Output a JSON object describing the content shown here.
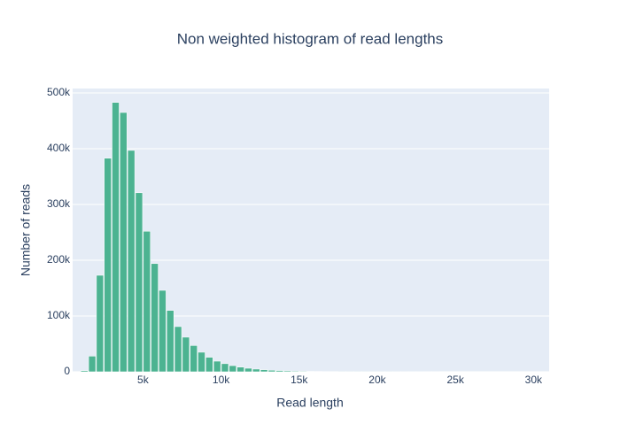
{
  "chart_data": {
    "type": "histogram",
    "title": "Non weighted histogram of read lengths",
    "x_label": "Read length",
    "y_label": "Number of reads",
    "bins": [
      1000,
      1500,
      2000,
      2500,
      3000,
      3500,
      4000,
      4500,
      5000,
      5500,
      6000,
      6500,
      7000,
      7500,
      8000,
      8500,
      9000,
      9500,
      10000,
      10500,
      11000,
      11500,
      12000,
      12500,
      13000,
      13500,
      14000,
      14500,
      15000,
      15500,
      16000,
      16500,
      17000,
      17500,
      18000,
      18500,
      19000,
      19500,
      20000,
      20500,
      21000,
      21500,
      22000,
      22500,
      23000,
      23500,
      24000,
      24500,
      25000,
      25500,
      26000,
      26500,
      27000,
      27500,
      28000,
      28500,
      29000,
      29500,
      30000,
      30500,
      31000
    ],
    "values": [
      2000,
      28000,
      173000,
      383000,
      483000,
      465000,
      397000,
      321000,
      252000,
      194000,
      146000,
      110000,
      81000,
      62000,
      47000,
      35000,
      26000,
      19000,
      14500,
      11000,
      8300,
      6300,
      4800,
      3700,
      2800,
      2200,
      1700,
      1300,
      1000,
      800,
      620,
      480,
      380,
      300,
      240,
      190,
      150,
      120,
      95,
      76,
      61,
      49,
      40,
      32,
      26,
      21,
      17,
      14,
      11,
      9,
      7,
      6,
      5,
      4,
      3,
      3,
      2,
      2,
      1,
      1
    ],
    "color": "#4cb391",
    "xlim": [
      500,
      31000
    ],
    "xticks": [
      {
        "value": 5000,
        "label": "5k"
      },
      {
        "value": 10000,
        "label": "10k"
      },
      {
        "value": 15000,
        "label": "15k"
      },
      {
        "value": 20000,
        "label": "20k"
      },
      {
        "value": 25000,
        "label": "25k"
      },
      {
        "value": 30000,
        "label": "30k"
      }
    ],
    "ylim": [
      0,
      508000
    ],
    "yticks": [
      0,
      {
        "value": 100000,
        "label": "100k"
      },
      {
        "value": 200000,
        "label": "200k"
      },
      {
        "value": 300000,
        "label": "300k"
      },
      {
        "value": 400000,
        "label": "400k"
      },
      {
        "value": 500000,
        "label": "500k"
      }
    ],
    "grid": true
  }
}
